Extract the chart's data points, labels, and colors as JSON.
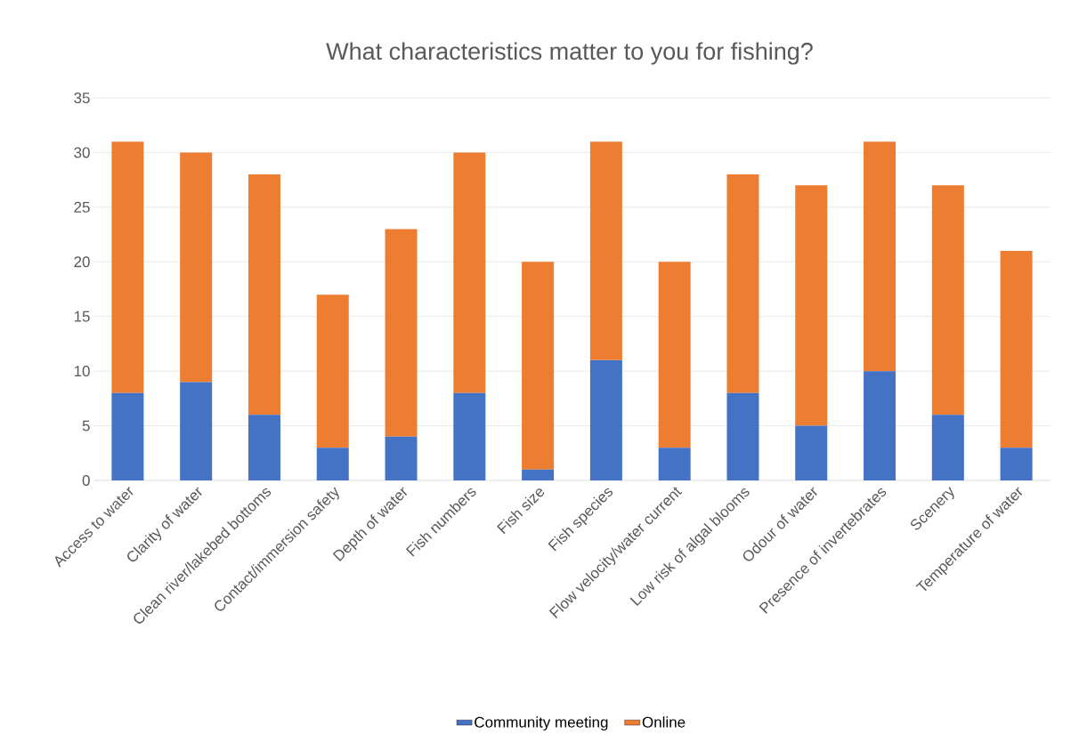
{
  "chart_data": {
    "type": "bar",
    "title": "What characteristics matter to you for fishing?",
    "categories": [
      "Access to water",
      "Clarity of water",
      "Clean river/lakebed bottoms",
      "Contact/immersion safety",
      "Depth of water",
      "Fish numbers",
      "Fish size",
      "Fish species",
      "Flow velocity/water current",
      "Low risk of algal blooms",
      "Odour of water",
      "Presence of invertebrates",
      "Scenery",
      "Temperature of water"
    ],
    "series": [
      {
        "name": "Community meeting",
        "color": "#4472c4",
        "values": [
          8,
          9,
          6,
          3,
          4,
          8,
          1,
          11,
          3,
          8,
          5,
          10,
          6,
          3
        ]
      },
      {
        "name": "Online",
        "color": "#ed7d31",
        "values": [
          23,
          21,
          22,
          14,
          19,
          22,
          19,
          20,
          17,
          20,
          22,
          21,
          21,
          18
        ]
      }
    ],
    "stacked": true,
    "ylim": [
      0,
      35
    ],
    "yticks": [
      0,
      5,
      10,
      15,
      20,
      25,
      30,
      35
    ],
    "grid": "y",
    "legend": "bottom"
  }
}
